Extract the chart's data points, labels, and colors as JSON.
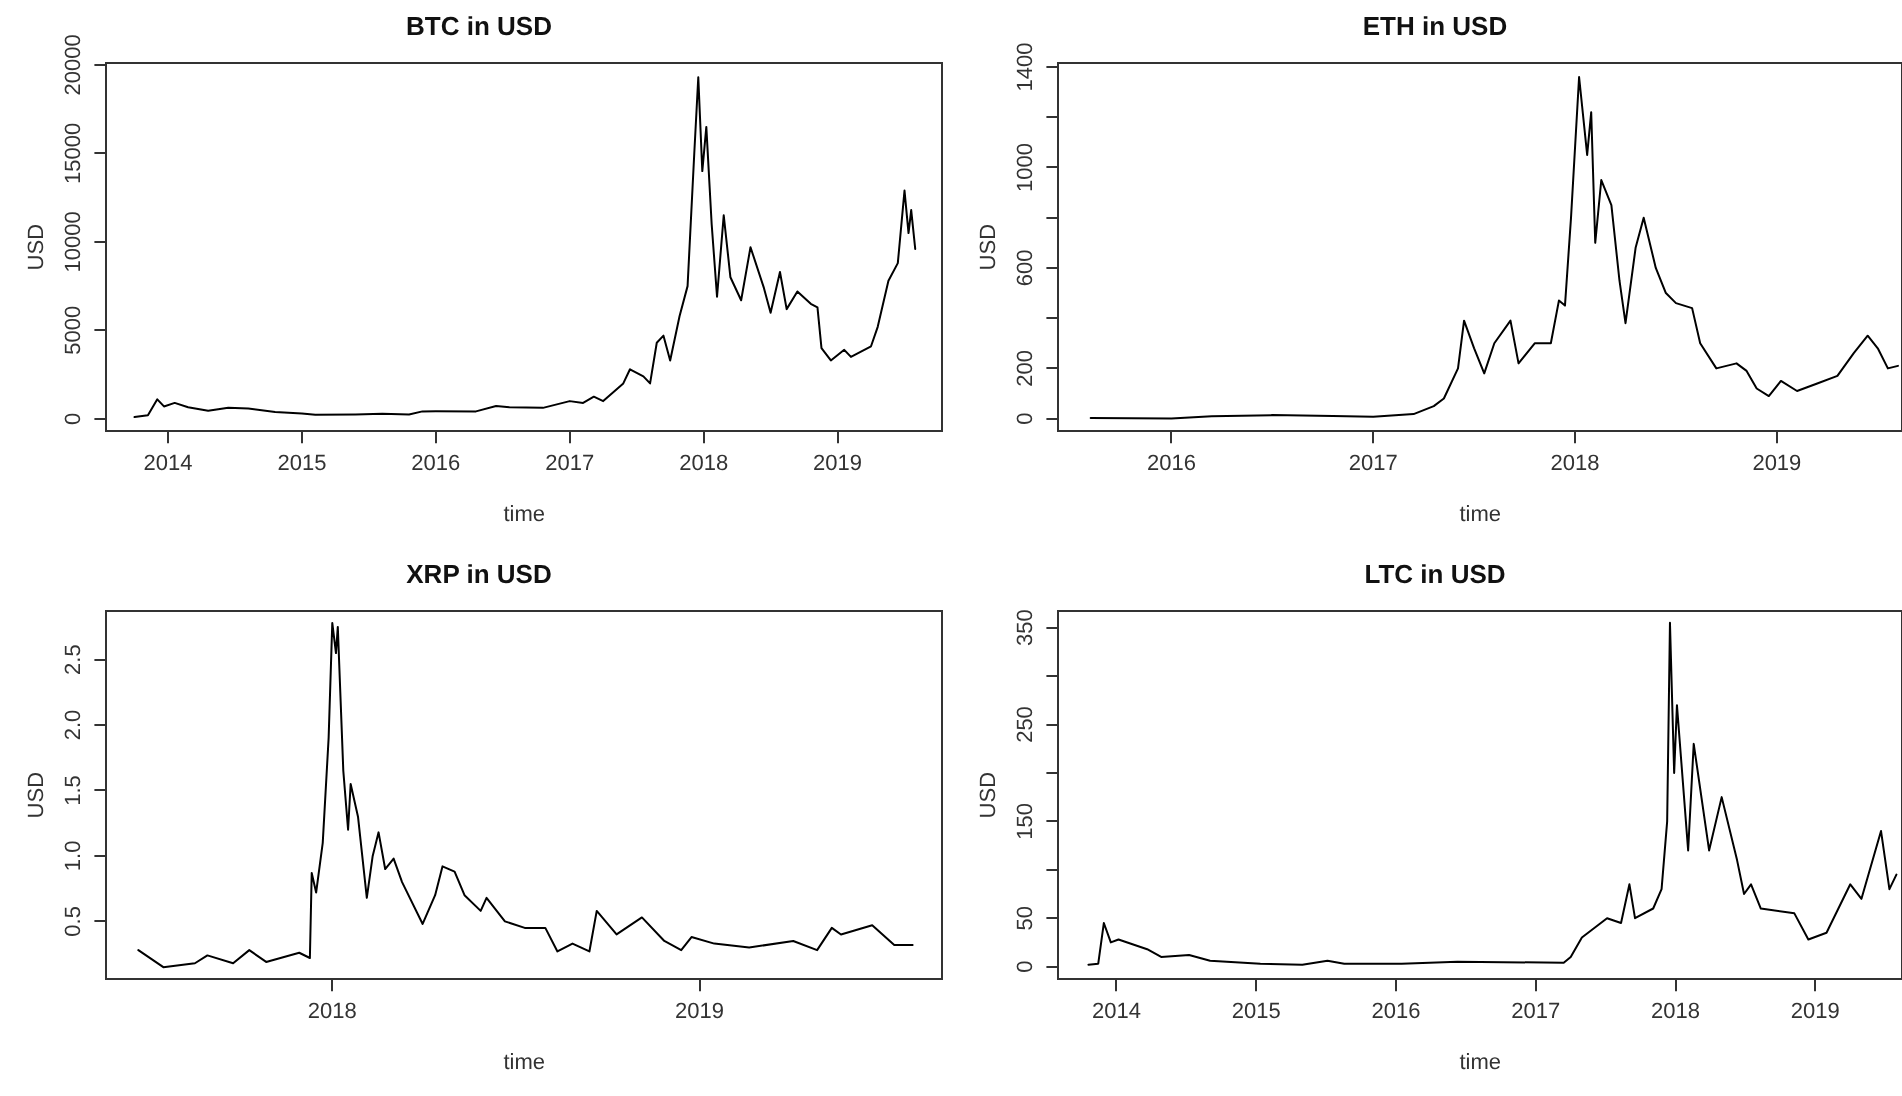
{
  "chart_data": [
    {
      "type": "line",
      "title": "BTC in USD",
      "xlabel": "time",
      "ylabel": "USD",
      "color": "#000000",
      "xlim": [
        2013.54,
        2019.78
      ],
      "ylim": [
        -700,
        20100
      ],
      "xticks": [
        2014,
        2015,
        2016,
        2017,
        2018,
        2019
      ],
      "yticks": [
        0,
        5000,
        10000,
        15000,
        20000
      ],
      "x": [
        2013.75,
        2013.85,
        2013.92,
        2013.97,
        2014.05,
        2014.15,
        2014.3,
        2014.45,
        2014.6,
        2014.8,
        2015.0,
        2015.1,
        2015.4,
        2015.6,
        2015.8,
        2015.9,
        2016.0,
        2016.3,
        2016.45,
        2016.55,
        2016.8,
        2017.0,
        2017.1,
        2017.18,
        2017.25,
        2017.4,
        2017.45,
        2017.55,
        2017.6,
        2017.65,
        2017.7,
        2017.75,
        2017.82,
        2017.88,
        2017.93,
        2017.96,
        2017.99,
        2018.02,
        2018.06,
        2018.1,
        2018.15,
        2018.2,
        2018.28,
        2018.35,
        2018.45,
        2018.5,
        2018.57,
        2018.62,
        2018.7,
        2018.8,
        2018.85,
        2018.88,
        2018.95,
        2019.05,
        2019.1,
        2019.25,
        2019.3,
        2019.38,
        2019.45,
        2019.5,
        2019.53,
        2019.55,
        2019.58
      ],
      "values": [
        100,
        200,
        1100,
        700,
        900,
        650,
        450,
        620,
        580,
        380,
        300,
        230,
        240,
        280,
        240,
        420,
        430,
        420,
        720,
        650,
        620,
        1000,
        900,
        1250,
        1000,
        2000,
        2800,
        2400,
        2000,
        4300,
        4700,
        3300,
        5800,
        7500,
        15000,
        19300,
        14000,
        16500,
        11000,
        6900,
        11500,
        8000,
        6700,
        9700,
        7400,
        6000,
        8300,
        6200,
        7200,
        6500,
        6300,
        4000,
        3300,
        3900,
        3500,
        4100,
        5200,
        7800,
        8800,
        12900,
        10500,
        11800,
        9600
      ]
    },
    {
      "type": "line",
      "title": "ETH in USD",
      "xlabel": "time",
      "ylabel": "USD",
      "color": "#000000",
      "xlim": [
        2015.44,
        2019.62
      ],
      "ylim": [
        -50,
        1415
      ],
      "xticks": [
        2016,
        2017,
        2018,
        2019
      ],
      "yticks": [
        0,
        200,
        {
          "value": 400,
          "label": null
        },
        600,
        {
          "value": 800,
          "label": null
        },
        1000,
        {
          "value": 1200,
          "label": null
        },
        1400
      ],
      "x": [
        2015.6,
        2016.0,
        2016.2,
        2016.5,
        2016.8,
        2017.0,
        2017.2,
        2017.3,
        2017.35,
        2017.42,
        2017.45,
        2017.5,
        2017.55,
        2017.6,
        2017.68,
        2017.72,
        2017.8,
        2017.88,
        2017.92,
        2017.95,
        2017.98,
        2018.02,
        2018.06,
        2018.08,
        2018.1,
        2018.13,
        2018.18,
        2018.22,
        2018.25,
        2018.3,
        2018.34,
        2018.4,
        2018.45,
        2018.5,
        2018.58,
        2018.62,
        2018.7,
        2018.8,
        2018.85,
        2018.9,
        2018.96,
        2019.02,
        2019.1,
        2019.2,
        2019.3,
        2019.38,
        2019.45,
        2019.5,
        2019.55,
        2019.6
      ],
      "values": [
        3,
        1,
        10,
        14,
        11,
        8,
        18,
        50,
        80,
        200,
        390,
        280,
        180,
        300,
        390,
        220,
        300,
        300,
        470,
        450,
        800,
        1360,
        1050,
        1220,
        700,
        950,
        850,
        550,
        380,
        680,
        800,
        600,
        500,
        460,
        440,
        300,
        200,
        220,
        190,
        120,
        90,
        150,
        110,
        140,
        170,
        260,
        330,
        280,
        200,
        210
      ]
    },
    {
      "type": "line",
      "title": "XRP in USD",
      "xlabel": "time",
      "ylabel": "USD",
      "color": "#000000",
      "xlim": [
        2017.385,
        2019.66
      ],
      "ylim": [
        0.058,
        2.87
      ],
      "xticks": [
        2018,
        2019
      ],
      "yticks": [
        0.5,
        {
          "value": 1,
          "label": "1.0"
        },
        1.5,
        {
          "value": 2,
          "label": "2.0"
        },
        2.5
      ],
      "x": [
        2017.472,
        2017.54,
        2017.626,
        2017.66,
        2017.73,
        2017.774,
        2017.82,
        2017.91,
        2017.939,
        2017.944,
        2017.956,
        2017.974,
        2017.99,
        2018.0,
        2018.01,
        2018.015,
        2018.03,
        2018.043,
        2018.05,
        2018.07,
        2018.094,
        2018.11,
        2018.126,
        2018.144,
        2018.167,
        2018.19,
        2018.246,
        2018.28,
        2018.3,
        2018.333,
        2018.36,
        2018.404,
        2018.42,
        2018.47,
        2018.524,
        2018.58,
        2018.613,
        2018.654,
        2018.7,
        2018.72,
        2018.774,
        2018.843,
        2018.904,
        2018.95,
        2018.978,
        2019.04,
        2019.135,
        2019.255,
        2019.32,
        2019.36,
        2019.385,
        2019.47,
        2019.53,
        2019.58
      ],
      "values": [
        0.28,
        0.15,
        0.18,
        0.24,
        0.18,
        0.28,
        0.19,
        0.26,
        0.22,
        0.87,
        0.72,
        1.1,
        1.9,
        2.78,
        2.55,
        2.75,
        1.65,
        1.2,
        1.55,
        1.3,
        0.68,
        1.0,
        1.18,
        0.9,
        0.98,
        0.8,
        0.48,
        0.7,
        0.92,
        0.88,
        0.7,
        0.58,
        0.68,
        0.5,
        0.45,
        0.45,
        0.27,
        0.33,
        0.27,
        0.58,
        0.4,
        0.53,
        0.35,
        0.28,
        0.38,
        0.33,
        0.3,
        0.35,
        0.28,
        0.45,
        0.4,
        0.47,
        0.32,
        0.32
      ]
    },
    {
      "type": "line",
      "title": "LTC in USD",
      "xlabel": "time",
      "ylabel": "USD",
      "color": "#000000",
      "xlim": [
        2013.585,
        2019.62
      ],
      "ylim": [
        -13,
        367
      ],
      "xticks": [
        2014,
        2015,
        2016,
        2017,
        2018,
        2019
      ],
      "yticks": [
        0,
        50,
        {
          "value": 100,
          "label": null
        },
        150,
        {
          "value": 200,
          "label": null
        },
        250,
        {
          "value": 300,
          "label": null
        },
        350
      ],
      "x": [
        2013.8,
        2013.87,
        2013.91,
        2013.96,
        2014.015,
        2014.22,
        2014.32,
        2014.52,
        2014.67,
        2015.03,
        2015.33,
        2015.51,
        2015.63,
        2016.04,
        2016.44,
        2017.2,
        2017.25,
        2017.33,
        2017.51,
        2017.61,
        2017.67,
        2017.71,
        2017.84,
        2017.9,
        2017.94,
        2017.96,
        2017.99,
        2018.01,
        2018.09,
        2018.13,
        2018.24,
        2018.33,
        2018.44,
        2018.49,
        2018.54,
        2018.61,
        2018.85,
        2018.95,
        2019.08,
        2019.25,
        2019.33,
        2019.47,
        2019.53,
        2019.58
      ],
      "values": [
        2,
        3,
        45,
        25,
        28,
        18,
        10,
        12,
        6,
        3,
        2,
        6,
        3,
        3,
        5,
        4,
        10,
        30,
        50,
        45,
        85,
        50,
        60,
        80,
        150,
        355,
        200,
        270,
        120,
        230,
        120,
        175,
        110,
        75,
        85,
        60,
        55,
        28,
        35,
        85,
        70,
        140,
        80,
        95
      ]
    }
  ]
}
